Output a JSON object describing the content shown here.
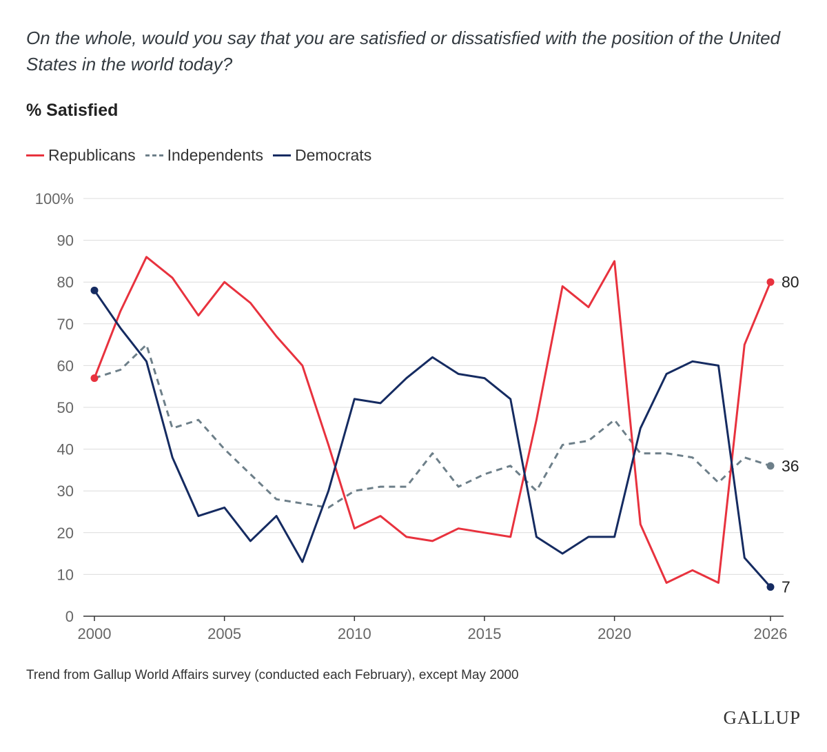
{
  "question": "On the whole, would you say that you are satisfied or dissatisfied with the position of the United States in the world today?",
  "subtitle": "% Satisfied",
  "source_note": "Trend from Gallup World Affairs survey (conducted each February), except May 2000",
  "logo": "GALLUP",
  "colors": {
    "republicans": "#e8323e",
    "independents": "#6d7f89",
    "democrats": "#152b61",
    "grid": "#dcdcdc",
    "axis": "#333333",
    "tick_text": "#666666"
  },
  "chart_data": {
    "type": "line",
    "title": "% Satisfied",
    "xlabel": "",
    "ylabel": "",
    "ylim": [
      0,
      100
    ],
    "yticks": [
      0,
      10,
      20,
      30,
      40,
      50,
      60,
      70,
      80,
      90,
      100
    ],
    "ytick_labels": [
      "0",
      "10",
      "20",
      "30",
      "40",
      "50",
      "60",
      "70",
      "80",
      "90",
      "100%"
    ],
    "xlim": [
      2000,
      2026
    ],
    "xticks": [
      2000,
      2005,
      2010,
      2015,
      2020,
      2026
    ],
    "xtick_labels": [
      "2000",
      "2005",
      "2010",
      "2015",
      "2020",
      "2026"
    ],
    "x": [
      2000,
      2001,
      2002,
      2003,
      2004,
      2005,
      2006,
      2007,
      2008,
      2009,
      2010,
      2011,
      2012,
      2013,
      2014,
      2015,
      2016,
      2017,
      2018,
      2019,
      2020,
      2021,
      2022,
      2023,
      2024,
      2025,
      2026
    ],
    "series": [
      {
        "name": "Republicans",
        "key": "republicans",
        "style": "solid",
        "values": [
          57,
          73,
          86,
          81,
          72,
          80,
          75,
          67,
          60,
          41,
          21,
          24,
          19,
          18,
          21,
          20,
          19,
          47,
          79,
          74,
          85,
          22,
          8,
          11,
          8,
          65,
          80
        ],
        "end_label": "80"
      },
      {
        "name": "Independents",
        "key": "independents",
        "style": "dashed",
        "values": [
          57,
          59,
          65,
          45,
          47,
          40,
          34,
          28,
          27,
          26,
          30,
          31,
          31,
          39,
          31,
          34,
          36,
          30,
          41,
          42,
          47,
          39,
          39,
          38,
          32,
          38,
          36
        ],
        "end_label": "36"
      },
      {
        "name": "Democrats",
        "key": "democrats",
        "style": "solid",
        "values": [
          78,
          69,
          61,
          38,
          24,
          26,
          18,
          24,
          13,
          30,
          52,
          51,
          57,
          62,
          58,
          57,
          52,
          19,
          15,
          19,
          19,
          45,
          58,
          61,
          60,
          14,
          7
        ],
        "end_label": "7"
      }
    ],
    "legend": [
      "Republicans",
      "Independents",
      "Democrats"
    ],
    "legend_position": "top-left",
    "grid": true
  }
}
